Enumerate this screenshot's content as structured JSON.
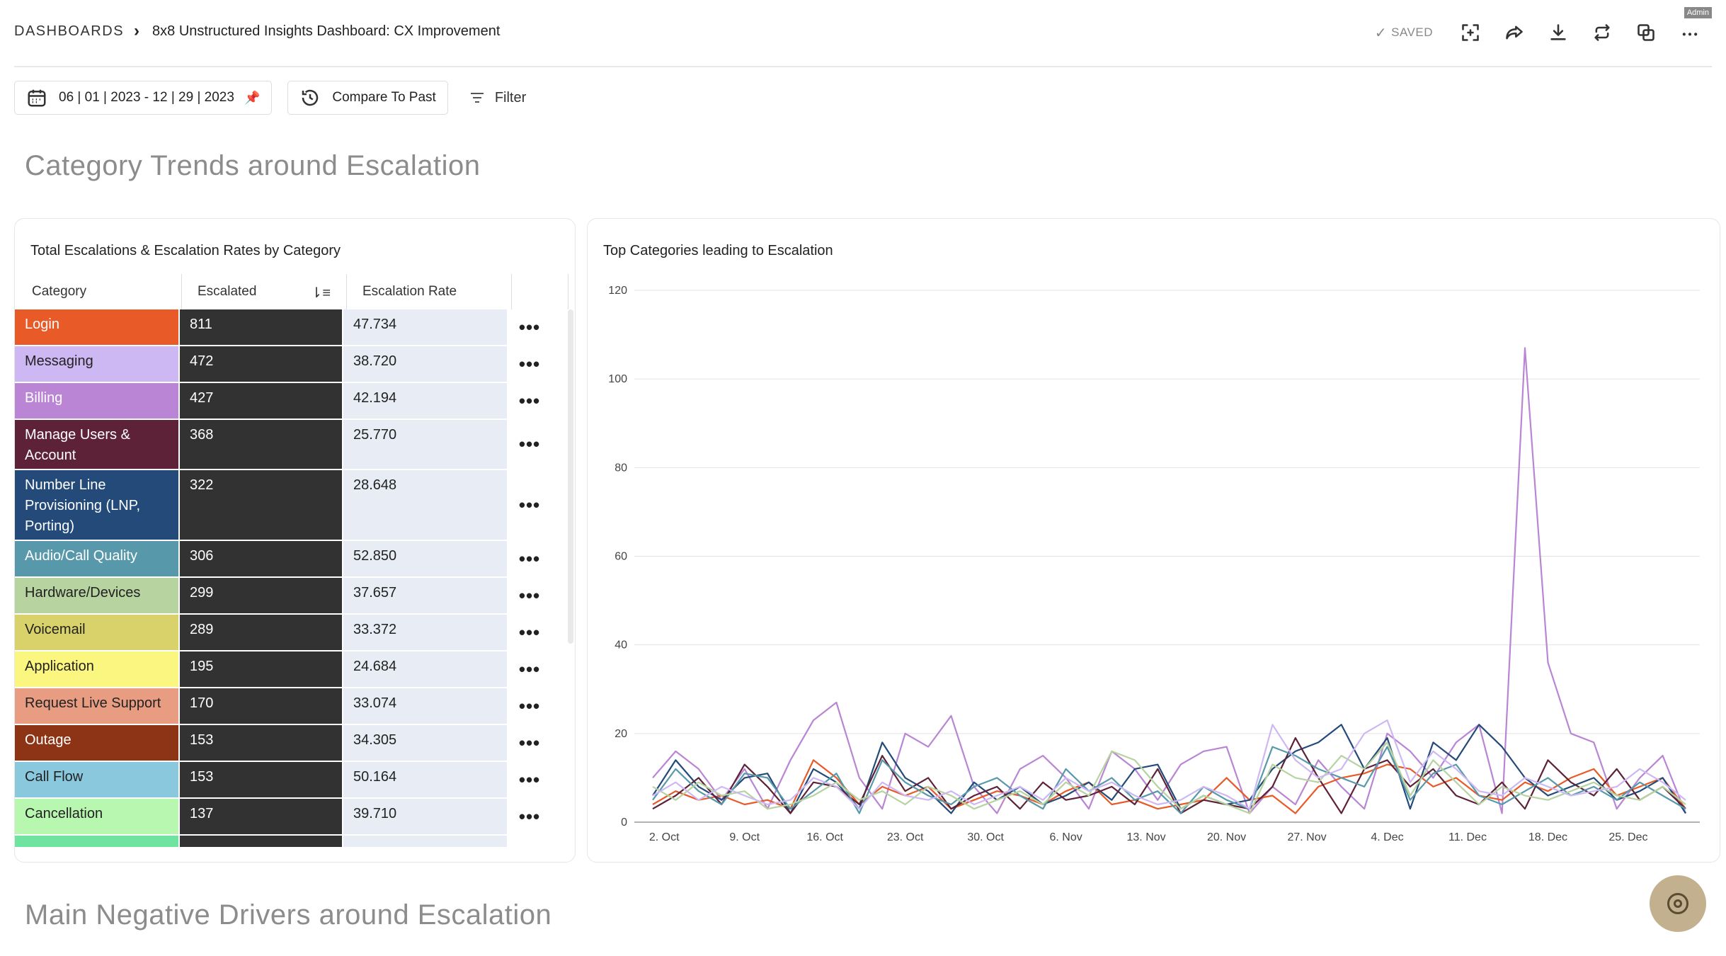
{
  "breadcrumb": {
    "root": "DASHBOARDS",
    "title": "8x8 Unstructured Insights Dashboard: CX Improvement"
  },
  "toolbar": {
    "saved_label": "SAVED",
    "admin_label": "Admin",
    "icons": [
      "fullscreen-icon",
      "share-icon",
      "download-icon",
      "refresh-icon",
      "duplicate-icon",
      "more-icon"
    ]
  },
  "filters": {
    "date_range": "06 | 01 | 2023 - 12 | 29 | 2023",
    "compare_label": "Compare To Past",
    "filter_label": "Filter"
  },
  "sections": {
    "first_title": "Category Trends around Escalation",
    "second_title": "Main Negative Drivers around Escalation"
  },
  "table": {
    "title": "Total Escalations & Escalation Rates by Category",
    "columns": [
      "Category",
      "Escalated",
      "Escalation Rate"
    ],
    "rows": [
      {
        "category": "Login",
        "escalated": "811",
        "rate": "47.734",
        "color": "#e85a28",
        "text_dark": false
      },
      {
        "category": "Messaging",
        "escalated": "472",
        "rate": "38.720",
        "color": "#cdb8f3",
        "text_dark": true
      },
      {
        "category": "Billing",
        "escalated": "427",
        "rate": "42.194",
        "color": "#b985d4",
        "text_dark": false
      },
      {
        "category": "Manage Users & Account",
        "escalated": "368",
        "rate": "25.770",
        "color": "#5e2238",
        "text_dark": false
      },
      {
        "category": "Number Line Provisioning (LNP, Porting)",
        "escalated": "322",
        "rate": "28.648",
        "color": "#234a79",
        "text_dark": false
      },
      {
        "category": "Audio/Call Quality",
        "escalated": "306",
        "rate": "52.850",
        "color": "#5898ab",
        "text_dark": false
      },
      {
        "category": "Hardware/Devices",
        "escalated": "299",
        "rate": "37.657",
        "color": "#b6d3a0",
        "text_dark": true
      },
      {
        "category": "Voicemail",
        "escalated": "289",
        "rate": "33.372",
        "color": "#d9d26a",
        "text_dark": true
      },
      {
        "category": "Application",
        "escalated": "195",
        "rate": "24.684",
        "color": "#fbf67f",
        "text_dark": true
      },
      {
        "category": "Request Live Support",
        "escalated": "170",
        "rate": "33.074",
        "color": "#e89d82",
        "text_dark": true
      },
      {
        "category": "Outage",
        "escalated": "153",
        "rate": "34.305",
        "color": "#8d3417",
        "text_dark": false
      },
      {
        "category": "Call Flow",
        "escalated": "153",
        "rate": "50.164",
        "color": "#8ac8dd",
        "text_dark": true
      },
      {
        "category": "Cancellation",
        "escalated": "137",
        "rate": "39.710",
        "color": "#b8f7b0",
        "text_dark": true
      },
      {
        "category": "",
        "escalated": "",
        "rate": "",
        "color": "#6fe3a0",
        "text_dark": true
      }
    ]
  },
  "chart_data": {
    "type": "line",
    "title": "Top Categories leading to Escalation",
    "x_tick_labels": [
      "2. Oct",
      "9. Oct",
      "16. Oct",
      "23. Oct",
      "30. Oct",
      "6. Nov",
      "13. Nov",
      "20. Nov",
      "27. Nov",
      "4. Dec",
      "11. Dec",
      "18. Dec",
      "25. Dec"
    ],
    "x": [
      "2023-10-01",
      "2023-10-03",
      "2023-10-05",
      "2023-10-07",
      "2023-10-09",
      "2023-10-11",
      "2023-10-13",
      "2023-10-15",
      "2023-10-17",
      "2023-10-19",
      "2023-10-21",
      "2023-10-23",
      "2023-10-25",
      "2023-10-27",
      "2023-10-29",
      "2023-10-31",
      "2023-11-02",
      "2023-11-04",
      "2023-11-06",
      "2023-11-08",
      "2023-11-10",
      "2023-11-12",
      "2023-11-14",
      "2023-11-16",
      "2023-11-18",
      "2023-11-20",
      "2023-11-22",
      "2023-11-24",
      "2023-11-26",
      "2023-11-28",
      "2023-11-30",
      "2023-12-02",
      "2023-12-04",
      "2023-12-06",
      "2023-12-08",
      "2023-12-10",
      "2023-12-12",
      "2023-12-14",
      "2023-12-16",
      "2023-12-18",
      "2023-12-20",
      "2023-12-22",
      "2023-12-24",
      "2023-12-26",
      "2023-12-28",
      "2023-12-30"
    ],
    "ylim": [
      0,
      120
    ],
    "y_ticks": [
      0,
      20,
      40,
      60,
      80,
      100,
      120
    ],
    "grid": true,
    "series": [
      {
        "color": "#b985d4",
        "values": [
          10,
          16,
          12,
          5,
          12,
          3,
          14,
          23,
          27,
          10,
          3,
          20,
          17,
          24,
          8,
          2,
          12,
          15,
          10,
          3,
          16,
          12,
          5,
          13,
          16,
          17,
          2,
          8,
          4,
          14,
          8,
          3,
          20,
          16,
          10,
          18,
          22,
          2,
          107,
          36,
          20,
          18,
          3,
          10,
          15,
          2
        ]
      },
      {
        "color": "#e85a28",
        "values": [
          4,
          7,
          5,
          6,
          4,
          5,
          3,
          14,
          10,
          4,
          8,
          6,
          8,
          3,
          5,
          7,
          6,
          4,
          7,
          9,
          4,
          5,
          3,
          4,
          5,
          10,
          5,
          6,
          2,
          8,
          10,
          11,
          13,
          12,
          8,
          10,
          6,
          5,
          9,
          7,
          10,
          12,
          6,
          8,
          10,
          3
        ]
      },
      {
        "color": "#234a79",
        "values": [
          6,
          14,
          8,
          5,
          10,
          11,
          2,
          12,
          9,
          3,
          18,
          10,
          7,
          2,
          9,
          5,
          8,
          4,
          6,
          9,
          5,
          12,
          13,
          3,
          6,
          4,
          5,
          12,
          16,
          18,
          22,
          12,
          19,
          3,
          18,
          14,
          22,
          17,
          10,
          6,
          8,
          10,
          5,
          7,
          10,
          2
        ]
      },
      {
        "color": "#5e2238",
        "values": [
          3,
          6,
          10,
          4,
          13,
          8,
          2,
          9,
          8,
          4,
          15,
          7,
          10,
          3,
          6,
          8,
          3,
          9,
          5,
          6,
          8,
          4,
          12,
          2,
          5,
          4,
          3,
          8,
          19,
          10,
          2,
          12,
          14,
          8,
          12,
          6,
          4,
          9,
          3,
          14,
          9,
          6,
          12,
          5,
          8,
          3
        ]
      },
      {
        "color": "#5898ab",
        "values": [
          5,
          12,
          7,
          4,
          11,
          10,
          3,
          7,
          11,
          2,
          14,
          9,
          6,
          4,
          8,
          10,
          6,
          3,
          12,
          7,
          10,
          5,
          7,
          2,
          8,
          5,
          3,
          17,
          15,
          12,
          10,
          8,
          17,
          5,
          11,
          13,
          6,
          4,
          7,
          10,
          6,
          8,
          5,
          9,
          6,
          3
        ]
      },
      {
        "color": "#b6d3a0",
        "values": [
          8,
          5,
          9,
          6,
          7,
          3,
          4,
          6,
          9,
          5,
          7,
          4,
          8,
          6,
          3,
          5,
          7,
          4,
          9,
          6,
          16,
          14,
          8,
          3,
          6,
          4,
          2,
          13,
          10,
          9,
          15,
          12,
          18,
          6,
          14,
          9,
          4,
          8,
          6,
          5,
          7,
          9,
          6,
          5,
          8,
          4
        ]
      },
      {
        "color": "#cdb8f3",
        "values": [
          6,
          9,
          5,
          8,
          6,
          4,
          5,
          10,
          8,
          3,
          9,
          6,
          5,
          7,
          4,
          6,
          8,
          5,
          10,
          7,
          9,
          6,
          4,
          5,
          8,
          6,
          3,
          22,
          14,
          10,
          12,
          20,
          23,
          9,
          16,
          12,
          7,
          6,
          10,
          8,
          6,
          7,
          8,
          12,
          9,
          5
        ]
      }
    ]
  }
}
